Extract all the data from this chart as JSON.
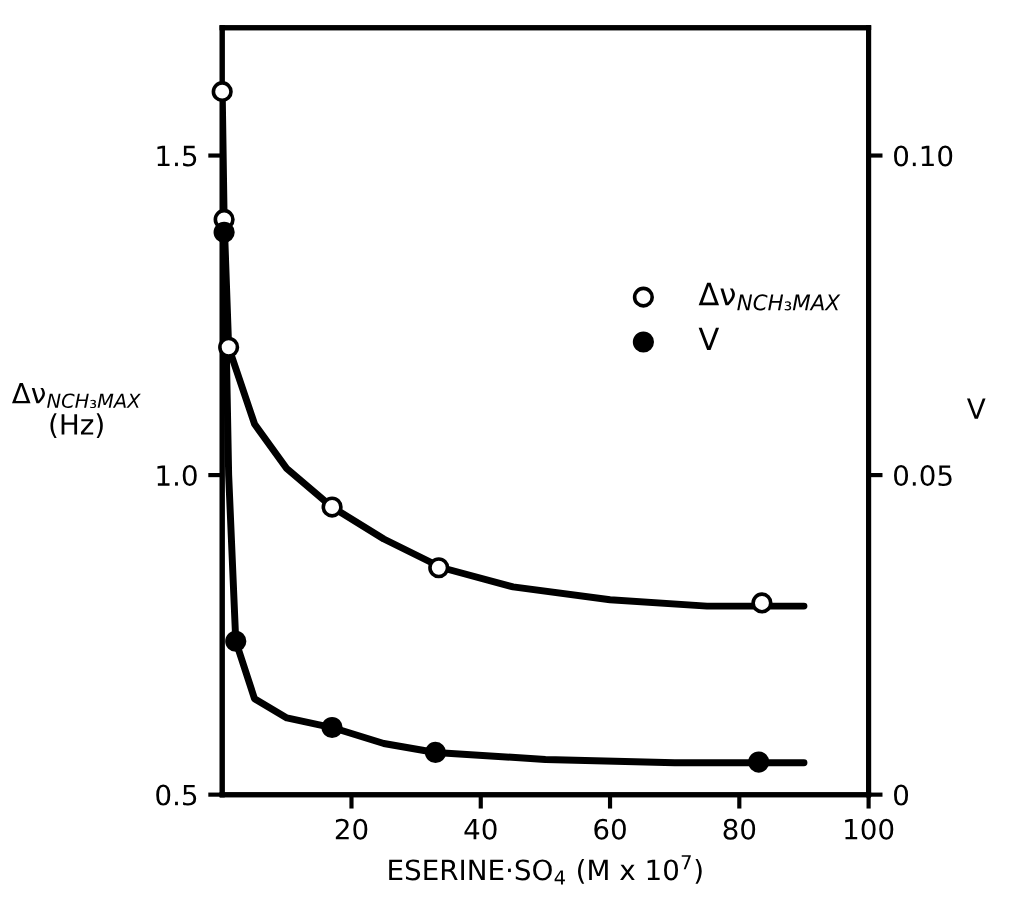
{
  "chart_data": {
    "type": "scatter",
    "xlabel": "ESERINE·SO$_{4}$ (M x 10$^{7}$)",
    "ylabel": "Δν$_{NCH₃MAX}$\n(Hz)",
    "y2label": "V",
    "xlim": [
      0,
      100
    ],
    "xticks": [
      20,
      40,
      60,
      80,
      100
    ],
    "ylim": [
      0.5,
      1.7
    ],
    "yticks": [
      0.5,
      {
        "value": 1.0,
        "label": "1.0"
      },
      1.5
    ],
    "y2lim": [
      0,
      0.12
    ],
    "y2ticks": [
      0,
      0.05,
      {
        "value": 0.1,
        "label": "0.10"
      }
    ],
    "legend": "right",
    "grid": false,
    "series": [
      {
        "type": "line",
        "color": "#000000",
        "x": [
          0,
          0.3,
          1,
          5,
          10,
          17,
          25,
          34,
          45,
          60,
          75,
          90
        ],
        "values": [
          1.6,
          1.4,
          1.2,
          1.08,
          1.01,
          0.95,
          0.9,
          0.855,
          0.825,
          0.805,
          0.795,
          0.795
        ]
      },
      {
        "type": "line",
        "color": "#000000",
        "axis": "y2",
        "x": [
          0.3,
          1,
          2.1,
          5,
          10,
          17,
          25,
          33,
          50,
          70,
          90
        ],
        "values": [
          0.088,
          0.05,
          0.024,
          0.015,
          0.012,
          0.0105,
          0.008,
          0.0066,
          0.0055,
          0.005,
          0.005
        ]
      },
      {
        "name": "Δν$_{NCH₃MAX}$",
        "color": "#ffffff",
        "marker": "circle",
        "x": [
          0,
          0.3,
          1,
          17,
          33.5,
          83.5
        ],
        "values": [
          1.6,
          1.4,
          1.2,
          0.95,
          0.855,
          0.8
        ]
      },
      {
        "name": "V",
        "color": "#000000",
        "marker": "circle",
        "axis": "y2",
        "x": [
          0.3,
          2.1,
          17,
          33,
          83
        ],
        "values": [
          0.088,
          0.024,
          0.0105,
          0.0066,
          0.0051
        ]
      }
    ]
  }
}
